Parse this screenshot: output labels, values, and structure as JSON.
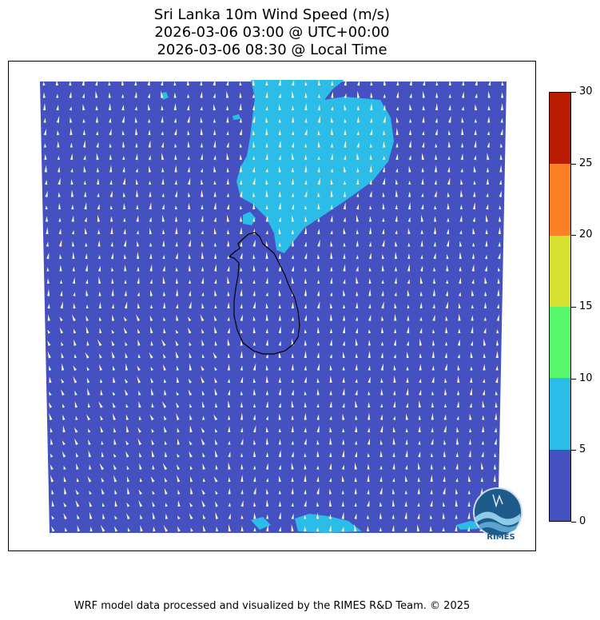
{
  "title": {
    "line1": "Sri Lanka 10m Wind Speed (m/s)",
    "line2": "2026-03-06 03:00 @ UTC+00:00",
    "line3": "2026-03-06 08:30 @ Local Time"
  },
  "colorbar": {
    "levels": [
      {
        "min": 0,
        "max": 5,
        "color": "#4550c1"
      },
      {
        "min": 5,
        "max": 10,
        "color": "#2bbde8"
      },
      {
        "min": 10,
        "max": 15,
        "color": "#57f86c"
      },
      {
        "min": 15,
        "max": 20,
        "color": "#d7e230"
      },
      {
        "min": 20,
        "max": 25,
        "color": "#fd8124"
      },
      {
        "min": 25,
        "max": 30,
        "color": "#b91c03"
      }
    ],
    "tick_labels": [
      "0",
      "5",
      "10",
      "15",
      "20",
      "25",
      "30"
    ]
  },
  "map": {
    "background_color": "#4550c1",
    "high_wind_color": "#2bbde8",
    "arrow_color": "#f4f4c8",
    "coastline_color": "#000000",
    "prevailing_wind": "northward"
  },
  "logo": {
    "text": "RIMES",
    "icon": "rimes-logo-icon"
  },
  "footer": {
    "text": "WRF model data processed and visualized by the RIMES R&D Team. © 2025"
  }
}
